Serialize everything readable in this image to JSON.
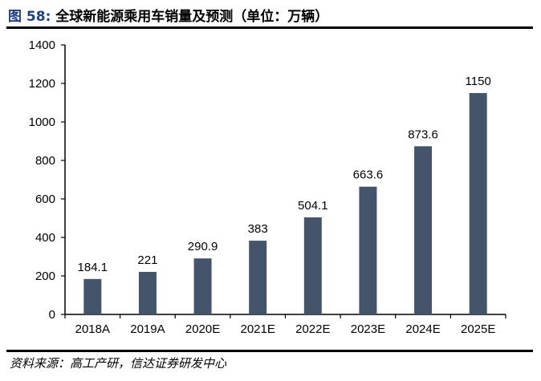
{
  "figure": {
    "number_label": "图 58:",
    "title": "全球新能源乘用车销量及预测（单位：万辆）",
    "source": "资料来源：高工产研，信达证券研发中心"
  },
  "colors": {
    "bar": "#44546A",
    "figure_label": "#1F3F7F"
  },
  "chart_data": {
    "type": "bar",
    "title": "全球新能源乘用车销量及预测（单位：万辆）",
    "xlabel": "",
    "ylabel": "",
    "categories": [
      "2018A",
      "2019A",
      "2020E",
      "2021E",
      "2022E",
      "2023E",
      "2024E",
      "2025E"
    ],
    "values": [
      184.1,
      221,
      290.9,
      383,
      504.1,
      663.6,
      873.6,
      1150
    ],
    "value_labels": [
      "184.1",
      "221",
      "290.9",
      "383",
      "504.1",
      "663.6",
      "873.6",
      "1150"
    ],
    "ylim": [
      0,
      1400
    ],
    "yticks": [
      0,
      200,
      400,
      600,
      800,
      1000,
      1200,
      1400
    ],
    "grid": false,
    "legend": "none"
  }
}
